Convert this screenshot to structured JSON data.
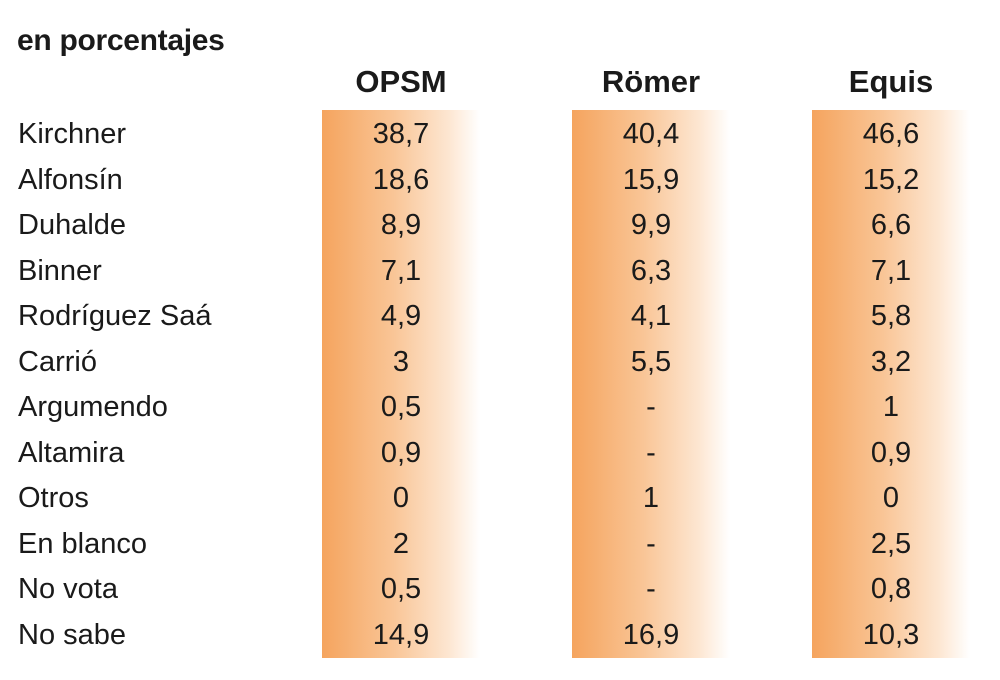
{
  "subtitle": "en porcentajes",
  "chart_data": {
    "type": "table",
    "title": "",
    "subtitle": "en porcentajes",
    "columns": [
      "OPSM",
      "Römer",
      "Equis"
    ],
    "rows": [
      {
        "label": "Kirchner",
        "values": [
          "38,7",
          "40,4",
          "46,6"
        ]
      },
      {
        "label": "Alfonsín",
        "values": [
          "18,6",
          "15,9",
          "15,2"
        ]
      },
      {
        "label": "Duhalde",
        "values": [
          "8,9",
          "9,9",
          "6,6"
        ]
      },
      {
        "label": "Binner",
        "values": [
          "7,1",
          "6,3",
          "7,1"
        ]
      },
      {
        "label": "Rodríguez Saá",
        "values": [
          "4,9",
          "4,1",
          "5,8"
        ]
      },
      {
        "label": "Carrió",
        "values": [
          "3",
          "5,5",
          "3,2"
        ]
      },
      {
        "label": "Argumendo",
        "values": [
          "0,5",
          "-",
          "1"
        ]
      },
      {
        "label": "Altamira",
        "values": [
          "0,9",
          "-",
          "0,9"
        ]
      },
      {
        "label": "Otros",
        "values": [
          "0",
          "1",
          "0"
        ]
      },
      {
        "label": "En blanco",
        "values": [
          "2",
          "-",
          "2,5"
        ]
      },
      {
        "label": "No vota",
        "values": [
          "0,5",
          "-",
          "0,8"
        ]
      },
      {
        "label": "No sabe",
        "values": [
          "14,9",
          "16,9",
          "10,3"
        ]
      }
    ]
  }
}
